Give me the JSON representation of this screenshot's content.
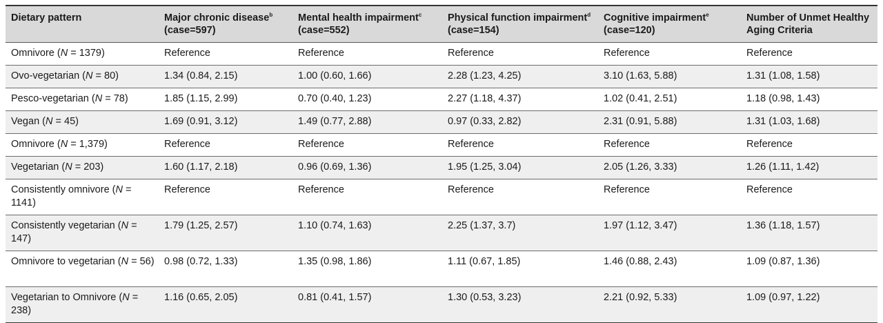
{
  "table": {
    "headers": [
      {
        "main": "Dietary pattern",
        "sup": "",
        "rest": ""
      },
      {
        "main": "Major chronic disease",
        "sup": "b",
        "rest": " (case=597)"
      },
      {
        "main": "Mental health impairment",
        "sup": "c",
        "rest": " (case=552)"
      },
      {
        "main": "Physical function impairment",
        "sup": "d",
        "rest": " (case=154)"
      },
      {
        "main": "Cognitive impairment",
        "sup": "e",
        "rest": " (case=120)"
      },
      {
        "main": "Number of Unmet Healthy Aging Criteria",
        "sup": "",
        "rest": ""
      }
    ],
    "rows": [
      {
        "label": "Omnivore (",
        "n": "N",
        "count": " = 1379)",
        "cells": [
          "Reference",
          "Reference",
          "Reference",
          "Reference",
          "Reference"
        ]
      },
      {
        "label": "Ovo-vegetarian (",
        "n": "N",
        "count": " = 80)",
        "cells": [
          "1.34 (0.84, 2.15)",
          "1.00 (0.60, 1.66)",
          "2.28 (1.23, 4.25)",
          "3.10 (1.63, 5.88)",
          "1.31 (1.08, 1.58)"
        ]
      },
      {
        "label": "Pesco-vegetarian (",
        "n": "N",
        "count": " = 78)",
        "cells": [
          "1.85 (1.15, 2.99)",
          "0.70 (0.40, 1.23)",
          "2.27 (1.18, 4.37)",
          "1.02 (0.41, 2.51)",
          "1.18 (0.98, 1.43)"
        ]
      },
      {
        "label": "Vegan (",
        "n": "N",
        "count": " = 45)",
        "cells": [
          "1.69 (0.91, 3.12)",
          "1.49 (0.77, 2.88)",
          "0.97 (0.33, 2.82)",
          "2.31 (0.91, 5.88)",
          "1.31 (1.03, 1.68)"
        ]
      },
      {
        "label": "Omnivore (",
        "n": "N",
        "count": " = 1,379)",
        "cells": [
          "Reference",
          "Reference",
          "Reference",
          "Reference",
          "Reference"
        ]
      },
      {
        "label": "Vegetarian (",
        "n": "N",
        "count": " = 203)",
        "cells": [
          "1.60 (1.17, 2.18)",
          "0.96 (0.69, 1.36)",
          "1.95 (1.25, 3.04)",
          "2.05 (1.26, 3.33)",
          "1.26 (1.11, 1.42)"
        ]
      },
      {
        "label": "Consistently omnivore (",
        "n": "N",
        "count": " = 1141)",
        "cells": [
          "Reference",
          "Reference",
          "Reference",
          "Reference",
          "Reference"
        ]
      },
      {
        "label": "Consistently vegetarian (",
        "n": "N",
        "count": " = 147)",
        "cells": [
          "1.79 (1.25, 2.57)",
          "1.10 (0.74, 1.63)",
          "2.25 (1.37, 3.7)",
          "1.97 (1.12, 3.47)",
          "1.36 (1.18, 1.57)"
        ]
      },
      {
        "label": "Omnivore to vegetarian (",
        "n": "N",
        "count": " = 56)",
        "cells": [
          "0.98 (0.72, 1.33)",
          "1.35 (0.98, 1.86)",
          "1.11 (0.67, 1.85)",
          "1.46 (0.88, 2.43)",
          "1.09 (0.87, 1.36)"
        ]
      },
      {
        "label": "Vegetarian to Omnivore (",
        "n": "N",
        "count": " = 238)",
        "cells": [
          "1.16 (0.65, 2.05)",
          "0.81 (0.41, 1.57)",
          "1.30 (0.53, 3.23)",
          "2.21 (0.92, 5.33)",
          "1.09 (0.97, 1.22)"
        ]
      }
    ]
  }
}
